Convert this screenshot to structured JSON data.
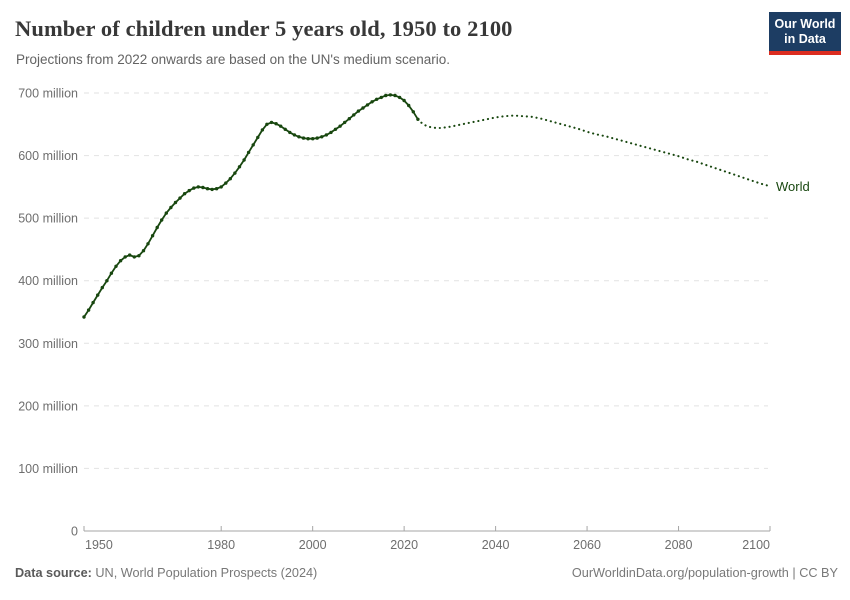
{
  "header": {
    "title": "Number of children under 5 years old, 1950 to 2100",
    "subtitle": "Projections from 2022 onwards are based on the UN's medium scenario.",
    "logo": {
      "line1": "Our World",
      "line2": "in Data"
    }
  },
  "footer": {
    "source_label": "Data source:",
    "source_text": " UN, World Population Prospects (2024)",
    "credit_text": "OurWorldinData.org/population-growth | CC BY"
  },
  "colors": {
    "line": "#18470f",
    "grid": "#e2e2e2",
    "axis": "#a6a6a6",
    "tick_label": "#6e6e6e",
    "logo_bg": "#1d3d63",
    "logo_bar": "#dc2d20"
  },
  "chart_data": {
    "type": "line",
    "title": "Number of children under 5 years old, 1950 to 2100",
    "subtitle": "Projections from 2022 onwards are based on the UN's medium scenario.",
    "entity": "World",
    "unit": "children under 5 years old (millions)",
    "xlim": [
      1950,
      2100
    ],
    "ylim": [
      0,
      700
    ],
    "grid": "horizontal dashed gridlines",
    "legend": "line labeled at right end",
    "projection_note": "solid line with point markers 1950-2023; dotted projection 2023-2100",
    "x_ticks": [
      1950,
      1980,
      2000,
      2020,
      2040,
      2060,
      2080,
      2100
    ],
    "y_ticks": [
      {
        "value": 0,
        "label": "0"
      },
      {
        "value": 100,
        "label": "100 million"
      },
      {
        "value": 200,
        "label": "200 million"
      },
      {
        "value": 300,
        "label": "300 million"
      },
      {
        "value": 400,
        "label": "400 million"
      },
      {
        "value": 500,
        "label": "500 million"
      },
      {
        "value": 600,
        "label": "600 million"
      },
      {
        "value": 700,
        "label": "700 million"
      }
    ],
    "series": [
      {
        "name": "World",
        "historical": [
          [
            1950,
            342
          ],
          [
            1951,
            353
          ],
          [
            1952,
            365
          ],
          [
            1953,
            377
          ],
          [
            1954,
            389
          ],
          [
            1955,
            400
          ],
          [
            1956,
            412
          ],
          [
            1957,
            423
          ],
          [
            1958,
            432
          ],
          [
            1959,
            438
          ],
          [
            1960,
            441
          ],
          [
            1961,
            438
          ],
          [
            1962,
            440
          ],
          [
            1963,
            448
          ],
          [
            1964,
            459
          ],
          [
            1965,
            472
          ],
          [
            1966,
            485
          ],
          [
            1967,
            497
          ],
          [
            1968,
            508
          ],
          [
            1969,
            517
          ],
          [
            1970,
            525
          ],
          [
            1971,
            532
          ],
          [
            1972,
            539
          ],
          [
            1973,
            544
          ],
          [
            1974,
            548
          ],
          [
            1975,
            550
          ],
          [
            1976,
            549
          ],
          [
            1977,
            547
          ],
          [
            1978,
            546
          ],
          [
            1979,
            547
          ],
          [
            1980,
            550
          ],
          [
            1981,
            556
          ],
          [
            1982,
            563
          ],
          [
            1983,
            572
          ],
          [
            1984,
            582
          ],
          [
            1985,
            593
          ],
          [
            1986,
            605
          ],
          [
            1987,
            617
          ],
          [
            1988,
            629
          ],
          [
            1989,
            641
          ],
          [
            1990,
            650
          ],
          [
            1991,
            653
          ],
          [
            1992,
            651
          ],
          [
            1993,
            647
          ],
          [
            1994,
            642
          ],
          [
            1995,
            637
          ],
          [
            1996,
            633
          ],
          [
            1997,
            630
          ],
          [
            1998,
            628
          ],
          [
            1999,
            627
          ],
          [
            2000,
            627
          ],
          [
            2001,
            628
          ],
          [
            2002,
            630
          ],
          [
            2003,
            633
          ],
          [
            2004,
            637
          ],
          [
            2005,
            642
          ],
          [
            2006,
            647
          ],
          [
            2007,
            653
          ],
          [
            2008,
            659
          ],
          [
            2009,
            665
          ],
          [
            2010,
            671
          ],
          [
            2011,
            676
          ],
          [
            2012,
            681
          ],
          [
            2013,
            686
          ],
          [
            2014,
            690
          ],
          [
            2015,
            693
          ],
          [
            2016,
            696
          ],
          [
            2017,
            697
          ],
          [
            2018,
            696
          ],
          [
            2019,
            693
          ],
          [
            2020,
            688
          ],
          [
            2021,
            680
          ],
          [
            2022,
            670
          ],
          [
            2023,
            658
          ]
        ],
        "projection": [
          [
            2023,
            658
          ],
          [
            2024,
            651
          ],
          [
            2025,
            647
          ],
          [
            2026,
            645
          ],
          [
            2027,
            644
          ],
          [
            2028,
            644
          ],
          [
            2030,
            646
          ],
          [
            2032,
            649
          ],
          [
            2034,
            652
          ],
          [
            2036,
            655
          ],
          [
            2038,
            658
          ],
          [
            2040,
            661
          ],
          [
            2042,
            663
          ],
          [
            2044,
            664
          ],
          [
            2046,
            663
          ],
          [
            2048,
            662
          ],
          [
            2050,
            659
          ],
          [
            2052,
            655
          ],
          [
            2054,
            651
          ],
          [
            2056,
            647
          ],
          [
            2058,
            643
          ],
          [
            2060,
            638
          ],
          [
            2062,
            634
          ],
          [
            2064,
            631
          ],
          [
            2066,
            627
          ],
          [
            2068,
            623
          ],
          [
            2070,
            619
          ],
          [
            2072,
            615
          ],
          [
            2074,
            611
          ],
          [
            2076,
            607
          ],
          [
            2078,
            603
          ],
          [
            2080,
            599
          ],
          [
            2082,
            594
          ],
          [
            2084,
            590
          ],
          [
            2086,
            585
          ],
          [
            2088,
            580
          ],
          [
            2090,
            575
          ],
          [
            2092,
            570
          ],
          [
            2094,
            565
          ],
          [
            2096,
            560
          ],
          [
            2098,
            555
          ],
          [
            2100,
            551
          ]
        ]
      }
    ]
  }
}
